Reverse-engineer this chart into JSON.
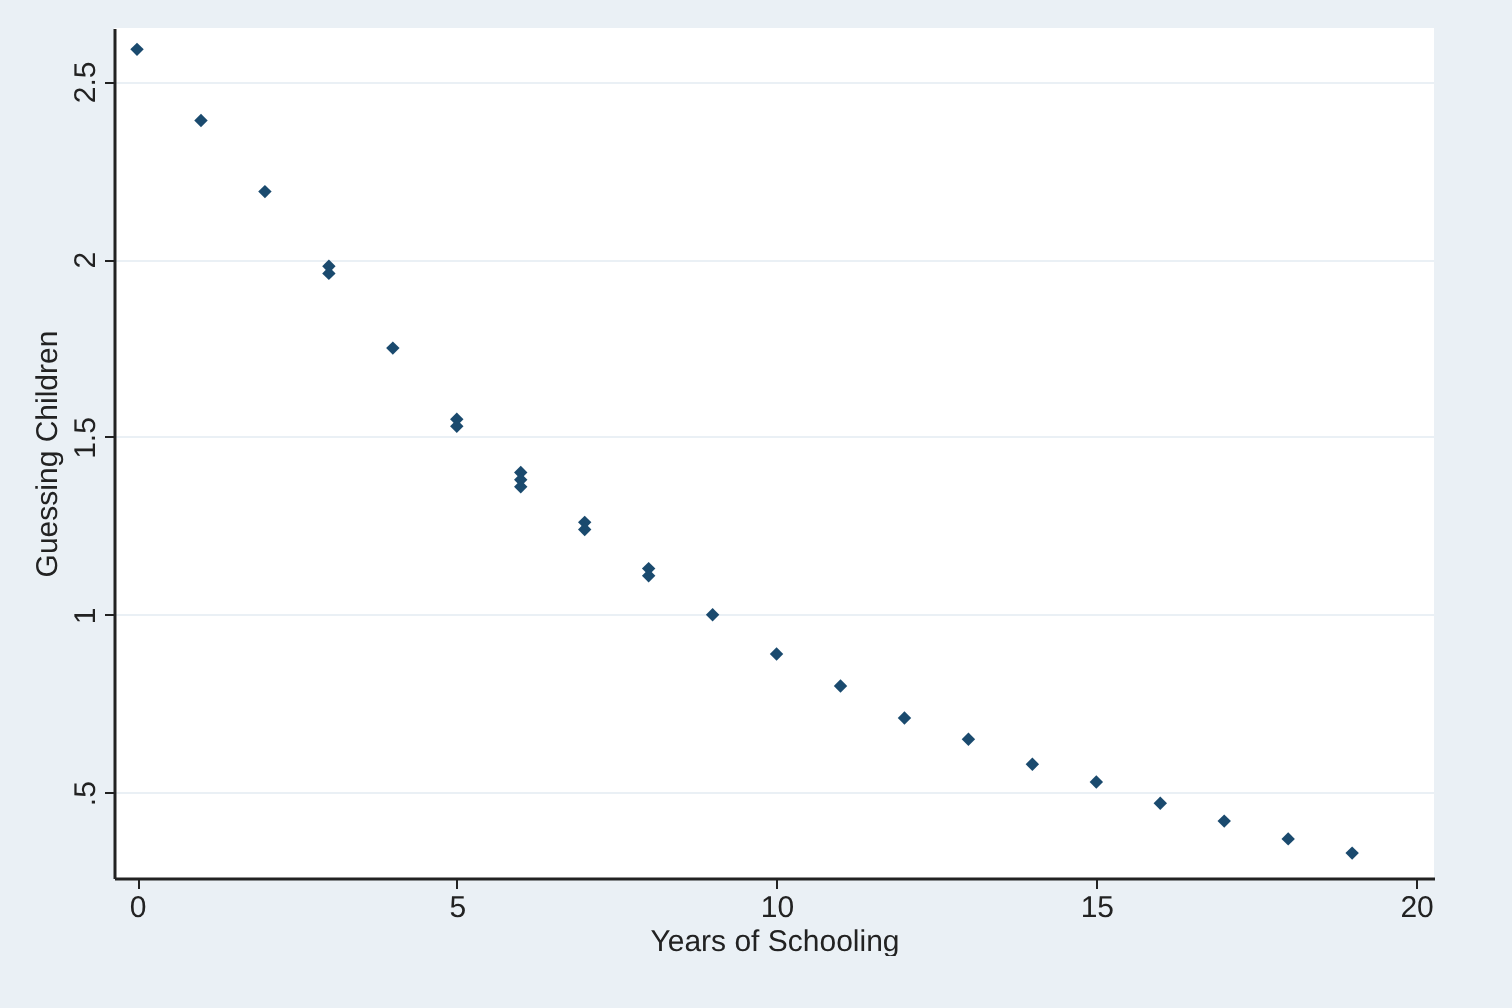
{
  "chart_data": {
    "type": "scatter",
    "xlabel": "Years of Schooling",
    "ylabel": "Guessing Children",
    "x": [
      0,
      1,
      2,
      3,
      3,
      4,
      5,
      5,
      6,
      6,
      6,
      7,
      7,
      8,
      8,
      9,
      10,
      11,
      12,
      13,
      14,
      15,
      16,
      17,
      18,
      19
    ],
    "series": [
      {
        "color": "#1a4a6e",
        "values": [
          2.59,
          2.39,
          2.19,
          1.98,
          1.96,
          1.75,
          1.55,
          1.53,
          1.4,
          1.38,
          1.36,
          1.26,
          1.24,
          1.13,
          1.11,
          1.0,
          0.89,
          0.8,
          0.71,
          0.65,
          0.58,
          0.53,
          0.47,
          0.42,
          0.37,
          0.33
        ]
      }
    ],
    "xlim": [
      -0.36,
      20.28
    ],
    "ylim": [
      0.26,
      2.65
    ],
    "xticks": [
      0,
      5,
      10,
      15,
      20
    ],
    "yticks": [
      {
        "value": 0.5,
        "label": ".5"
      },
      1,
      1.5,
      2,
      2.5
    ],
    "grid": "y",
    "marker": "diamond"
  }
}
